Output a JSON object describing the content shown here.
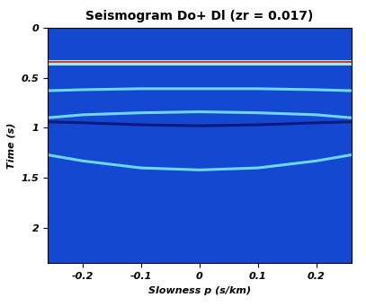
{
  "chart_data": {
    "type": "line",
    "title": "Seismogram Do+ Dl (zr = 0.017)",
    "x_label": "Slowness p (s/km)",
    "y_label": "Time (s)",
    "x": [
      -0.26,
      -0.2,
      -0.1,
      0,
      0.1,
      0.2,
      0.26
    ],
    "series": [
      {
        "color": "#9fe8ff",
        "values": [
          0.33,
          0.33,
          0.33,
          0.33,
          0.33,
          0.33,
          0.33
        ]
      },
      {
        "color": "#d04020",
        "values": [
          0.345,
          0.345,
          0.345,
          0.345,
          0.345,
          0.345,
          0.345
        ]
      },
      {
        "color": "#9fe8ff",
        "values": [
          0.36,
          0.36,
          0.36,
          0.36,
          0.36,
          0.36,
          0.36
        ]
      },
      {
        "color": "#6fd6ff",
        "values": [
          0.63,
          0.62,
          0.61,
          0.61,
          0.61,
          0.62,
          0.63
        ]
      },
      {
        "color": "#6fd6ff",
        "values": [
          0.9,
          0.87,
          0.85,
          0.84,
          0.85,
          0.87,
          0.9
        ]
      },
      {
        "color": "#0a1a80",
        "values": [
          0.94,
          0.95,
          0.97,
          0.98,
          0.97,
          0.95,
          0.94
        ]
      },
      {
        "color": "#6fd6ff",
        "values": [
          1.27,
          1.33,
          1.4,
          1.42,
          1.4,
          1.33,
          1.27
        ]
      }
    ],
    "xlim": [
      -0.26,
      0.26
    ],
    "ylim": [
      2.35,
      0
    ],
    "xticks": [
      -0.2,
      -0.1,
      0,
      0.1,
      0.2
    ],
    "yticks": [
      0,
      0.5,
      1,
      1.5,
      2
    ],
    "grid": false
  }
}
